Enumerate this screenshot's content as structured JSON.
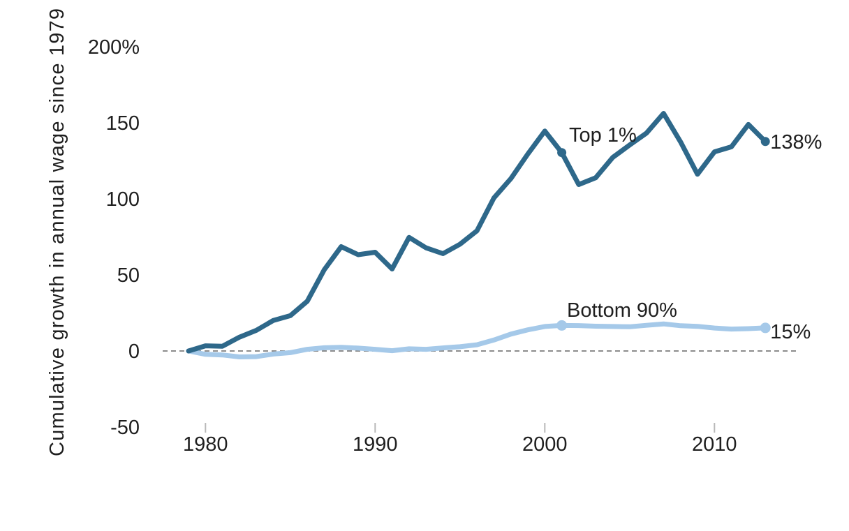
{
  "chart_data": {
    "type": "line",
    "title": "",
    "ylabel": "Cumulative growth in annual wage since 1979",
    "xlabel": "",
    "xlim": [
      1979,
      2013
    ],
    "ylim": [
      -50,
      200
    ],
    "grid": false,
    "legend": "inline-labels",
    "zero_line_dashed": true,
    "colors": {
      "top1_line": "#2e688a",
      "bottom90_line": "#a5c9e9",
      "zero_line": "#8c8c8c",
      "tick_mark": "#b8b8b8",
      "text": "#1f1f1f",
      "background": "#ffffff"
    },
    "x": [
      1979,
      1980,
      1981,
      1982,
      1983,
      1984,
      1985,
      1986,
      1987,
      1988,
      1989,
      1990,
      1991,
      1992,
      1993,
      1994,
      1995,
      1996,
      1997,
      1998,
      1999,
      2000,
      2001,
      2002,
      2003,
      2004,
      2005,
      2006,
      2007,
      2008,
      2009,
      2010,
      2011,
      2012,
      2013
    ],
    "series": [
      {
        "name": "Top 1%",
        "color": "#2e688a",
        "end_label": "138%",
        "marker_years": [
          2001,
          2013
        ],
        "values": [
          0,
          3.4,
          3.1,
          9.1,
          13.6,
          20.1,
          23.2,
          32.7,
          53.4,
          68.6,
          63.3,
          64.9,
          53.9,
          74.7,
          67.8,
          64.0,
          70.2,
          79.0,
          100.6,
          113.3,
          129.5,
          144.6,
          130.4,
          109.4,
          113.9,
          127.2,
          135.4,
          143.3,
          156.2,
          137.5,
          116.2,
          130.9,
          134.2,
          148.9,
          137.7
        ]
      },
      {
        "name": "Bottom 90%",
        "color": "#a5c9e9",
        "end_label": "15%",
        "marker_years": [
          2001,
          2013
        ],
        "values": [
          0,
          -2.2,
          -2.6,
          -3.9,
          -3.7,
          -2.0,
          -1.1,
          1.1,
          2.1,
          2.4,
          1.9,
          1.1,
          0.2,
          1.4,
          1.1,
          2.0,
          2.8,
          4.1,
          7.2,
          11.1,
          13.9,
          16.1,
          16.8,
          16.7,
          16.3,
          16.1,
          15.9,
          16.9,
          17.8,
          16.6,
          16.2,
          15.1,
          14.4,
          14.7,
          15.2
        ]
      }
    ],
    "x_axis": {
      "ticks": [
        {
          "value": 1980,
          "label": "1980"
        },
        {
          "value": 1990,
          "label": "1990"
        },
        {
          "value": 2000,
          "label": "2000"
        },
        {
          "value": 2010,
          "label": "2010"
        }
      ]
    },
    "y_axis": {
      "ticks": [
        {
          "value": 200,
          "label": "200%"
        },
        {
          "value": 150,
          "label": "150"
        },
        {
          "value": 100,
          "label": "100"
        },
        {
          "value": 50,
          "label": "50"
        },
        {
          "value": 0,
          "label": "0"
        },
        {
          "value": -50,
          "label": "-50"
        }
      ]
    }
  }
}
